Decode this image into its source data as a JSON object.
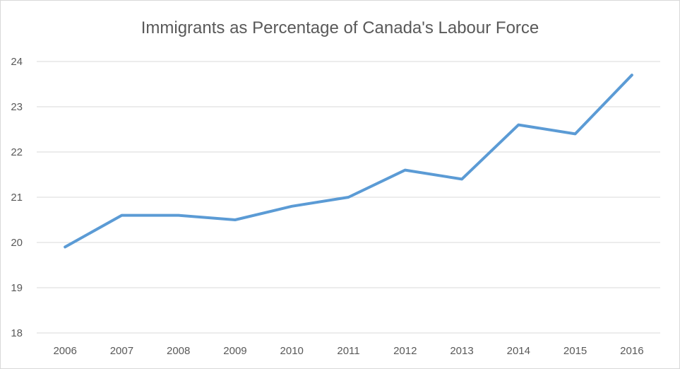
{
  "chart_data": {
    "type": "line",
    "title": "Immigrants as Percentage of Canada's Labour Force",
    "xlabel": "",
    "ylabel": "",
    "categories": [
      "2006",
      "2007",
      "2008",
      "2009",
      "2010",
      "2011",
      "2012",
      "2013",
      "2014",
      "2015",
      "2016"
    ],
    "series": [
      {
        "values": [
          19.9,
          20.6,
          20.6,
          20.5,
          20.8,
          21.0,
          21.6,
          21.4,
          22.6,
          22.4,
          23.7
        ],
        "color": "#5b9bd5"
      }
    ],
    "ylim": [
      18,
      24
    ],
    "yticks": [
      "18",
      "19",
      "20",
      "21",
      "22",
      "23",
      "24"
    ],
    "grid": true,
    "legend": "none"
  }
}
